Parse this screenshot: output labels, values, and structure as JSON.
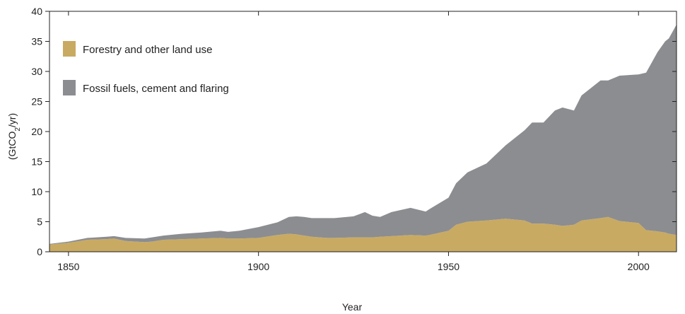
{
  "chart_data": {
    "type": "area",
    "stacked": true,
    "xlabel": "Year",
    "ylabel_parts": [
      "(GtCO",
      "2",
      "/yr)"
    ],
    "xlim": [
      1845,
      2010
    ],
    "ylim": [
      0,
      40
    ],
    "x_ticks": [
      1850,
      1900,
      1950,
      2000
    ],
    "y_ticks": [
      0,
      5,
      10,
      15,
      20,
      25,
      30,
      35,
      40
    ],
    "grid": false,
    "legend_position": "top-left",
    "x": [
      1845,
      1850,
      1855,
      1860,
      1862,
      1865,
      1870,
      1872,
      1875,
      1880,
      1885,
      1890,
      1892,
      1895,
      1900,
      1905,
      1908,
      1910,
      1912,
      1914,
      1918,
      1920,
      1925,
      1928,
      1930,
      1932,
      1935,
      1940,
      1944,
      1945,
      1950,
      1952,
      1955,
      1960,
      1965,
      1970,
      1972,
      1975,
      1978,
      1980,
      1983,
      1985,
      1990,
      1992,
      1995,
      2000,
      2002,
      2005,
      2007,
      2008,
      2010
    ],
    "series": [
      {
        "name": "Forestry and other land use",
        "color": "#C8AA63",
        "values": [
          1.2,
          1.5,
          2.0,
          2.1,
          2.2,
          1.8,
          1.6,
          1.7,
          2.0,
          2.1,
          2.2,
          2.3,
          2.2,
          2.2,
          2.3,
          2.8,
          3.0,
          2.9,
          2.7,
          2.5,
          2.3,
          2.3,
          2.4,
          2.4,
          2.4,
          2.5,
          2.6,
          2.8,
          2.7,
          2.8,
          3.5,
          4.5,
          5.0,
          5.2,
          5.5,
          5.2,
          4.7,
          4.7,
          4.5,
          4.3,
          4.5,
          5.2,
          5.6,
          5.8,
          5.1,
          4.8,
          3.6,
          3.4,
          3.2,
          3.0,
          2.8
        ]
      },
      {
        "name": "Fossil fuels, cement and flaring",
        "color": "#8C8D90",
        "values": [
          0.1,
          0.2,
          0.3,
          0.4,
          0.4,
          0.5,
          0.6,
          0.7,
          0.7,
          0.9,
          1.0,
          1.2,
          1.1,
          1.3,
          1.8,
          2.1,
          2.8,
          3.0,
          3.1,
          3.1,
          3.3,
          3.3,
          3.5,
          4.2,
          3.6,
          3.3,
          4.0,
          4.5,
          4.0,
          4.3,
          5.5,
          6.9,
          8.2,
          9.5,
          12.2,
          15.0,
          16.8,
          16.8,
          19.0,
          19.7,
          19.0,
          20.8,
          22.9,
          22.7,
          24.2,
          24.7,
          26.2,
          29.8,
          31.8,
          32.5,
          35.0
        ]
      }
    ]
  }
}
